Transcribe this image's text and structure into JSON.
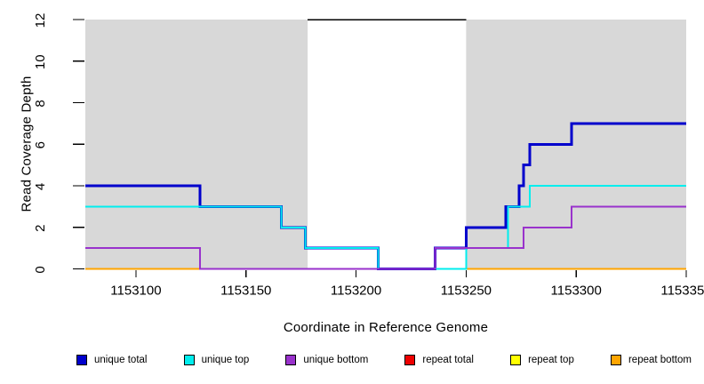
{
  "chart_data": {
    "type": "line",
    "subtype": "step-coverage",
    "title": "",
    "xlabel": "Coordinate in Reference Genome",
    "ylabel": "Read Coverage Depth",
    "xlim": [
      1153077,
      1153350
    ],
    "ylim": [
      0,
      12
    ],
    "grid": false,
    "x_ticks": {
      "values": [
        1153100,
        1153150,
        1153200,
        1153250,
        1153300,
        1153350
      ],
      "labels": [
        "1153100",
        "1153150",
        "1153200",
        "1153250",
        "1153300",
        "1153350"
      ]
    },
    "y_ticks": {
      "values": [
        0,
        2,
        4,
        6,
        8,
        10,
        12
      ],
      "labels": [
        "0",
        "2",
        "4",
        "6",
        "8",
        "10",
        "12"
      ]
    },
    "background_color": "#ffffff",
    "shaded_regions": [
      {
        "label": "unique-region-left",
        "from": 1153077,
        "to": 1153178,
        "color": "#D8D8D8"
      },
      {
        "label": "unique-region-right",
        "from": 1153250,
        "to": 1153350,
        "color": "#D8D8D8"
      }
    ],
    "repeat_region_marker": {
      "y": 12,
      "from": 1153178,
      "to": 1153250,
      "color": "#000000"
    },
    "series": [
      {
        "id": "repeat-total",
        "name": "repeat total",
        "color": "#EE0000",
        "width": 2,
        "steps": [
          [
            1153077,
            0
          ],
          [
            1153350,
            0
          ]
        ]
      },
      {
        "id": "repeat-top",
        "name": "repeat top",
        "color": "#FFFF00",
        "width": 2,
        "steps": [
          [
            1153077,
            0
          ],
          [
            1153350,
            0
          ]
        ]
      },
      {
        "id": "repeat-bottom",
        "name": "repeat bottom",
        "color": "#FFA500",
        "width": 2,
        "steps": [
          [
            1153077,
            0
          ],
          [
            1153350,
            0
          ]
        ]
      },
      {
        "id": "unique-total",
        "name": "unique total",
        "color": "#0000CC",
        "width": 3,
        "steps": [
          [
            1153077,
            4
          ],
          [
            1153129,
            3
          ],
          [
            1153166,
            2
          ],
          [
            1153177,
            1
          ],
          [
            1153210,
            0
          ],
          [
            1153236,
            1
          ],
          [
            1153250,
            2
          ],
          [
            1153268,
            3
          ],
          [
            1153274,
            4
          ],
          [
            1153276,
            5
          ],
          [
            1153279,
            6
          ],
          [
            1153298,
            7
          ],
          [
            1153350,
            7
          ]
        ]
      },
      {
        "id": "unique-top",
        "name": "unique top",
        "color": "#00EEEE",
        "width": 2,
        "steps": [
          [
            1153077,
            3
          ],
          [
            1153166,
            2
          ],
          [
            1153177,
            1
          ],
          [
            1153210,
            0
          ],
          [
            1153250,
            1
          ],
          [
            1153269,
            3
          ],
          [
            1153279,
            4
          ],
          [
            1153350,
            4
          ]
        ]
      },
      {
        "id": "unique-bottom",
        "name": "unique bottom",
        "color": "#9932CC",
        "width": 2,
        "steps": [
          [
            1153077,
            1
          ],
          [
            1153129,
            0
          ],
          [
            1153236,
            1
          ],
          [
            1153276,
            2
          ],
          [
            1153298,
            3
          ],
          [
            1153350,
            3
          ]
        ]
      }
    ],
    "legend_position": "bottom",
    "legend": [
      {
        "label": "unique total",
        "color": "#0000CC"
      },
      {
        "label": "unique top",
        "color": "#00EEEE"
      },
      {
        "label": "unique bottom",
        "color": "#9932CC"
      },
      {
        "label": "repeat total",
        "color": "#EE0000"
      },
      {
        "label": "repeat top",
        "color": "#FFFF00"
      },
      {
        "label": "repeat bottom",
        "color": "#FFA500"
      }
    ]
  }
}
